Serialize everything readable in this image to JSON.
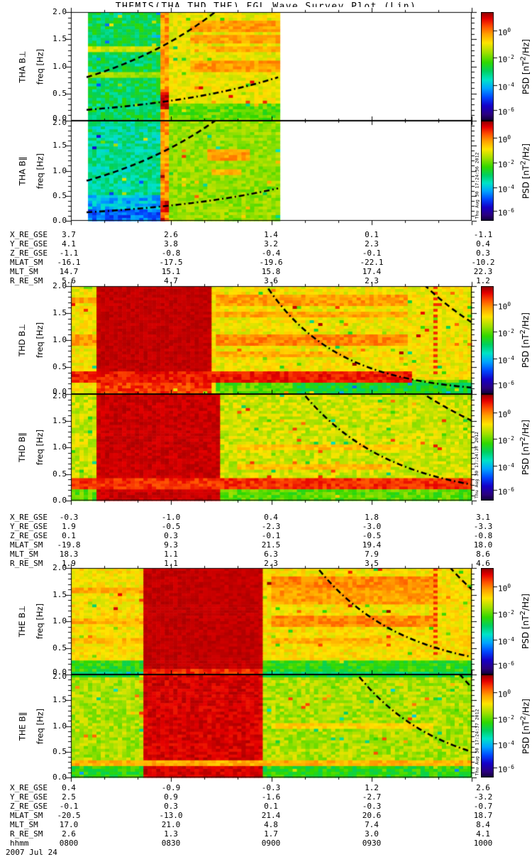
{
  "title": "THEMIS(THA,THD,THE) FGL Wave Survey Plot (Lin)",
  "axis": {
    "freq_label": "freq [Hz]",
    "freq_ticks": [
      "0.0",
      "0.5",
      "1.0",
      "1.5",
      "2.0"
    ],
    "psd_label": {
      "pre": "PSD [nT",
      "sup": "2",
      "post": "/Hz]"
    },
    "psd_ticks": [
      {
        "mant": "10",
        "exp": "0",
        "frac": 0.17
      },
      {
        "mant": "10",
        "exp": "-2",
        "frac": 0.42
      },
      {
        "mant": "10",
        "exp": "-4",
        "frac": 0.67
      },
      {
        "mant": "10",
        "exp": "-6",
        "frac": 0.9
      }
    ]
  },
  "time_axis": {
    "label": "hhmm",
    "ticks": [
      "0800",
      "0830",
      "0900",
      "0930",
      "1000"
    ],
    "date": "2007 Jul 24"
  },
  "annotation_labels": [
    "X_RE_GSE",
    "Y_RE_GSE",
    "Z_RE_GSE",
    "MLAT_SM",
    "MLT_SM",
    "R_RE_SM"
  ],
  "groups": [
    {
      "probe": "THA",
      "timestamp": "Thu Aug 30 17:24:36 2012",
      "panels": [
        {
          "label": "THA B⊥",
          "key": "tha_bperp"
        },
        {
          "label": "THA B∥",
          "key": "tha_bpar"
        }
      ],
      "ephemeris": {
        "X_RE_GSE": [
          "3.7",
          "2.6",
          "1.4",
          "0.1",
          "-1.1"
        ],
        "Y_RE_GSE": [
          "4.1",
          "3.8",
          "3.2",
          "2.3",
          "0.4"
        ],
        "Z_RE_GSE": [
          "-1.1",
          "-0.8",
          "-0.4",
          "-0.1",
          "0.3"
        ],
        "MLAT_SM": [
          "-16.1",
          "-17.5",
          "-19.6",
          "-22.1",
          "-10.2"
        ],
        "MLT_SM": [
          "14.7",
          "15.1",
          "15.8",
          "17.4",
          "22.3"
        ],
        "R_RE_SM": [
          "5.6",
          "4.7",
          "3.6",
          "2.3",
          "1.2"
        ]
      }
    },
    {
      "probe": "THD",
      "timestamp": "Thu Aug 30 17:24:37 2012",
      "panels": [
        {
          "label": "THD B⊥",
          "key": "thd_bperp"
        },
        {
          "label": "THD B∥",
          "key": "thd_bpar"
        }
      ],
      "ephemeris": {
        "X_RE_GSE": [
          "-0.3",
          "-1.0",
          "0.4",
          "1.8",
          "3.1"
        ],
        "Y_RE_GSE": [
          "1.9",
          "-0.5",
          "-2.3",
          "-3.0",
          "-3.3"
        ],
        "Z_RE_GSE": [
          "0.1",
          "0.3",
          "-0.1",
          "-0.5",
          "-0.8"
        ],
        "MLAT_SM": [
          "-19.8",
          "9.3",
          "21.5",
          "19.4",
          "18.0"
        ],
        "MLT_SM": [
          "18.3",
          "1.1",
          "6.3",
          "7.9",
          "8.6"
        ],
        "R_RE_SM": [
          "1.9",
          "1.1",
          "2.3",
          "3.5",
          "4.6"
        ]
      }
    },
    {
      "probe": "THE",
      "timestamp": "Thu Aug 30 17:24:37 2012",
      "panels": [
        {
          "label": "THE B⊥",
          "key": "the_bperp"
        },
        {
          "label": "THE B∥",
          "key": "the_bpar"
        }
      ],
      "ephemeris": {
        "X_RE_GSE": [
          "0.4",
          "-0.9",
          "-0.3",
          "1.2",
          "2.6"
        ],
        "Y_RE_GSE": [
          "2.5",
          "0.9",
          "-1.6",
          "-2.7",
          "-3.2"
        ],
        "Z_RE_GSE": [
          "-0.1",
          "0.3",
          "0.1",
          "-0.3",
          "-0.7"
        ],
        "MLAT_SM": [
          "-20.5",
          "-13.0",
          "21.4",
          "20.6",
          "18.7"
        ],
        "MLT_SM": [
          "17.0",
          "21.0",
          "4.8",
          "7.4",
          "8.4"
        ],
        "R_RE_SM": [
          "2.6",
          "1.3",
          "1.7",
          "3.0",
          "4.1"
        ]
      }
    }
  ],
  "chart_data": {
    "type": "heatmap",
    "subtype": "wave-power-spectrogram",
    "x_axis": {
      "label": "hhmm",
      "start": "0800",
      "end": "1000",
      "date": "2007 Jul 24",
      "major_tick_minutes": 30
    },
    "y_axis": {
      "label": "freq [Hz]",
      "range": [
        0.0,
        2.0
      ],
      "major_tick": 0.5
    },
    "z_axis": {
      "label": "PSD [nT2/Hz]",
      "tick_labels": [
        "10^0",
        "10^-2",
        "10^-4",
        "10^-6"
      ],
      "scale": "log"
    },
    "colormap": [
      [
        0.0,
        "#0d0030"
      ],
      [
        0.06,
        "#2b007f"
      ],
      [
        0.14,
        "#1500c8"
      ],
      [
        0.22,
        "#0048ff"
      ],
      [
        0.3,
        "#00a4ff"
      ],
      [
        0.38,
        "#00e4c8"
      ],
      [
        0.46,
        "#00d060"
      ],
      [
        0.54,
        "#30d800"
      ],
      [
        0.63,
        "#a0e000"
      ],
      [
        0.72,
        "#ffe400"
      ],
      [
        0.8,
        "#ffa000"
      ],
      [
        0.87,
        "#ff5000"
      ],
      [
        0.94,
        "#e60000"
      ],
      [
        1.0,
        "#8f0000"
      ]
    ],
    "panels": {
      "tha_bperp": {
        "data_x": [
          0.039,
          0.517
        ],
        "regions": [
          {
            "x0": 0.039,
            "x1": 0.2265,
            "f0": 0,
            "f1": 2,
            "v": 0.47,
            "j": 0.07
          },
          {
            "x0": 0.2265,
            "x1": 0.248,
            "f0": 0,
            "f1": 2,
            "v": 0.8,
            "j": 0.06
          },
          {
            "x0": 0.248,
            "x1": 0.517,
            "f0": 0,
            "f1": 2,
            "v": 0.7,
            "j": 0.045
          },
          {
            "x0": 0.248,
            "x1": 0.517,
            "f0": 0,
            "f1": 0.3,
            "v": 0.57,
            "j": 0.06
          }
        ],
        "streaks": [
          {
            "x0": 0.039,
            "x1": 0.2265,
            "f": 1.33,
            "v": 0.67,
            "h": 1
          },
          {
            "x0": 0.039,
            "x1": 0.2265,
            "f": 0.85,
            "v": 0.63,
            "h": 1
          },
          {
            "x0": 0.3,
            "x1": 0.517,
            "f": 1.75,
            "v": 0.8,
            "h": 2
          },
          {
            "x0": 0.3,
            "x1": 0.517,
            "f": 1.5,
            "v": 0.79,
            "h": 1
          },
          {
            "x0": 0.33,
            "x1": 0.517,
            "f": 1.33,
            "v": 0.78,
            "h": 1
          },
          {
            "x0": 0.3,
            "x1": 0.517,
            "f": 1.0,
            "v": 0.8,
            "h": 2
          },
          {
            "x0": 0.2265,
            "x1": 0.248,
            "f": 0.35,
            "v": 0.95,
            "h": 3
          }
        ],
        "vstripes": [],
        "curves": [
          {
            "x0": 0.039,
            "f0": 0.8,
            "x1": 0.385,
            "f1": 2.15,
            "dash": "dash"
          },
          {
            "x0": 0.039,
            "f0": 0.2,
            "x1": 0.517,
            "f1": 0.8,
            "dash": "dashdot"
          }
        ]
      },
      "tha_bpar": {
        "data_x": [
          0.039,
          0.517
        ],
        "regions": [
          {
            "x0": 0.039,
            "x1": 0.2265,
            "f0": 0.5,
            "f1": 2,
            "v": 0.42,
            "j": 0.07
          },
          {
            "x0": 0.039,
            "x1": 0.2265,
            "f0": 0.2,
            "f1": 0.5,
            "v": 0.32,
            "j": 0.07
          },
          {
            "x0": 0.039,
            "x1": 0.2265,
            "f0": 0,
            "f1": 0.2,
            "v": 0.25,
            "j": 0.07
          },
          {
            "x0": 0.2265,
            "x1": 0.248,
            "f0": 0,
            "f1": 2,
            "v": 0.8,
            "j": 0.06
          },
          {
            "x0": 0.248,
            "x1": 0.517,
            "f0": 0,
            "f1": 2,
            "v": 0.62,
            "j": 0.05
          }
        ],
        "streaks": [
          {
            "x0": 0.34,
            "x1": 0.45,
            "f": 1.33,
            "v": 0.8,
            "h": 2
          },
          {
            "x0": 0.35,
            "x1": 0.43,
            "f": 0.95,
            "v": 0.78,
            "h": 1
          },
          {
            "x0": 0.2265,
            "x1": 0.248,
            "f": 0.3,
            "v": 0.94,
            "h": 2
          }
        ],
        "vstripes": [],
        "curves": [
          {
            "x0": 0.039,
            "f0": 0.8,
            "x1": 0.385,
            "f1": 2.15,
            "dash": "dash"
          },
          {
            "x0": 0.039,
            "f0": 0.17,
            "x1": 0.517,
            "f1": 0.65,
            "dash": "dashdot"
          }
        ]
      },
      "thd_bperp": {
        "data_x": [
          0,
          1
        ],
        "regions": [
          {
            "x0": 0,
            "x1": 1,
            "f0": 0,
            "f1": 2,
            "v": 0.71,
            "j": 0.05
          },
          {
            "x0": 0.36,
            "x1": 1,
            "f0": 0,
            "f1": 0.28,
            "v": 0.57,
            "j": 0.06
          },
          {
            "x0": 0.55,
            "x1": 1,
            "f0": 0,
            "f1": 0.22,
            "v": 0.5,
            "j": 0.06
          },
          {
            "x0": 0.062,
            "x1": 0.354,
            "f0": 0.28,
            "f1": 2,
            "v": 0.965,
            "j": 0.015
          },
          {
            "x0": 0.062,
            "x1": 0.354,
            "f0": 0,
            "f1": 0.28,
            "v": 0.89,
            "j": 0.05
          }
        ],
        "streaks": [
          {
            "x0": 0,
            "x1": 0.85,
            "f": 0.33,
            "v": 0.92,
            "h": 2
          },
          {
            "x0": 0.36,
            "x1": 0.84,
            "f": 1.75,
            "v": 0.8,
            "h": 2
          },
          {
            "x0": 0.36,
            "x1": 0.84,
            "f": 1.45,
            "v": 0.79,
            "h": 1
          },
          {
            "x0": 0.36,
            "x1": 0.84,
            "f": 1.0,
            "v": 0.82,
            "h": 2
          },
          {
            "x0": 0.36,
            "x1": 0.7,
            "f": 0.75,
            "v": 0.78,
            "h": 1
          },
          {
            "x0": 0,
            "x1": 0.062,
            "f": 1.75,
            "v": 0.79,
            "h": 1
          },
          {
            "x0": 0,
            "x1": 0.062,
            "f": 1.0,
            "v": 0.8,
            "h": 2
          }
        ],
        "vstripes": [
          {
            "x": 0.905,
            "f0": 0.3,
            "f1": 2,
            "v": 0.9
          }
        ],
        "curves": [
          {
            "x0": 0.475,
            "f0": 2.15,
            "x1": 1.0,
            "f1": 0.12,
            "dash": "dashdot"
          },
          {
            "x0": 0.865,
            "f0": 2.15,
            "x1": 1.0,
            "f1": 1.33,
            "dash": "dash"
          }
        ]
      },
      "thd_bpar": {
        "data_x": [
          0,
          1
        ],
        "regions": [
          {
            "x0": 0,
            "x1": 1,
            "f0": 0,
            "f1": 2,
            "v": 0.67,
            "j": 0.06
          },
          {
            "x0": 0,
            "x1": 1,
            "f0": 0,
            "f1": 0.25,
            "v": 0.57,
            "j": 0.06
          },
          {
            "x0": 0.062,
            "x1": 0.368,
            "f0": 0,
            "f1": 2,
            "v": 0.96,
            "j": 0.02
          }
        ],
        "streaks": [
          {
            "x0": 0,
            "x1": 1,
            "f": 0.3,
            "v": 0.9,
            "h": 2
          },
          {
            "x0": 0.42,
            "x1": 0.85,
            "f": 1.0,
            "v": 0.76,
            "h": 1
          },
          {
            "x0": 0.42,
            "x1": 0.8,
            "f": 0.62,
            "v": 0.77,
            "h": 1
          }
        ],
        "vstripes": [],
        "curves": [
          {
            "x0": 0.565,
            "f0": 2.15,
            "x1": 1.0,
            "f1": 0.3,
            "dash": "dashdot"
          },
          {
            "x0": 0.85,
            "f0": 2.15,
            "x1": 1.0,
            "f1": 1.5,
            "dash": "dash"
          }
        ]
      },
      "the_bperp": {
        "data_x": [
          0,
          1
        ],
        "regions": [
          {
            "x0": 0,
            "x1": 1,
            "f0": 0,
            "f1": 2,
            "v": 0.72,
            "j": 0.05
          },
          {
            "x0": 0,
            "x1": 1,
            "f0": 0,
            "f1": 0.27,
            "v": 0.53,
            "j": 0.06
          },
          {
            "x0": 0,
            "x1": 1,
            "f0": 0,
            "f1": 0.06,
            "v": 0.45,
            "j": 0.04
          },
          {
            "x0": 0.185,
            "x1": 0.482,
            "f0": 0.12,
            "f1": 2,
            "v": 0.965,
            "j": 0.015
          },
          {
            "x0": 0.185,
            "x1": 0.482,
            "f0": 0,
            "f1": 0.12,
            "v": 0.9,
            "j": 0.04
          }
        ],
        "streaks": [
          {
            "x0": 0.5,
            "x1": 0.92,
            "f": 1.75,
            "v": 0.82,
            "h": 2
          },
          {
            "x0": 0.5,
            "x1": 0.92,
            "f": 1.6,
            "v": 0.8,
            "h": 1
          },
          {
            "x0": 0.5,
            "x1": 0.92,
            "f": 1.45,
            "v": 0.8,
            "h": 2
          },
          {
            "x0": 0.5,
            "x1": 0.92,
            "f": 1.0,
            "v": 0.82,
            "h": 2
          },
          {
            "x0": 0,
            "x1": 0.185,
            "f": 1.6,
            "v": 0.79,
            "h": 1
          },
          {
            "x0": 0,
            "x1": 0.185,
            "f": 1.0,
            "v": 0.78,
            "h": 1
          },
          {
            "x0": 0,
            "x1": 0.185,
            "f": 0.62,
            "v": 0.77,
            "h": 1
          },
          {
            "x0": 0.5,
            "x1": 0.8,
            "f": 0.62,
            "v": 0.78,
            "h": 1
          }
        ],
        "vstripes": [
          {
            "x": 0.91,
            "f0": 0.3,
            "f1": 2,
            "v": 0.9
          }
        ],
        "curves": [
          {
            "x0": 0.6,
            "f0": 2.15,
            "x1": 1.0,
            "f1": 0.33,
            "dash": "dashdot"
          },
          {
            "x0": 0.93,
            "f0": 2.15,
            "x1": 1.0,
            "f1": 1.6,
            "dash": "dash"
          }
        ]
      },
      "the_bpar": {
        "data_x": [
          0,
          1
        ],
        "regions": [
          {
            "x0": 0,
            "x1": 1,
            "f0": 0,
            "f1": 2,
            "v": 0.64,
            "j": 0.06
          },
          {
            "x0": 0,
            "x1": 1,
            "f0": 1.92,
            "f1": 2,
            "v": 0.5,
            "j": 0.05
          },
          {
            "x0": 0,
            "x1": 1,
            "f0": 0,
            "f1": 0.2,
            "v": 0.53,
            "j": 0.06
          },
          {
            "x0": 0.185,
            "x1": 0.482,
            "f0": 0,
            "f1": 2,
            "v": 0.95,
            "j": 0.03
          }
        ],
        "streaks": [
          {
            "x0": 0,
            "x1": 1,
            "f": 0.28,
            "v": 0.78,
            "h": 1
          },
          {
            "x0": 0.5,
            "x1": 0.9,
            "f": 1.0,
            "v": 0.74,
            "h": 1
          }
        ],
        "vstripes": [],
        "curves": [
          {
            "x0": 0.7,
            "f0": 2.15,
            "x1": 1.0,
            "f1": 0.5,
            "dash": "dashdot"
          },
          {
            "x0": 0.955,
            "f0": 2.15,
            "x1": 1.0,
            "f1": 1.75,
            "dash": "dash"
          }
        ]
      }
    }
  }
}
